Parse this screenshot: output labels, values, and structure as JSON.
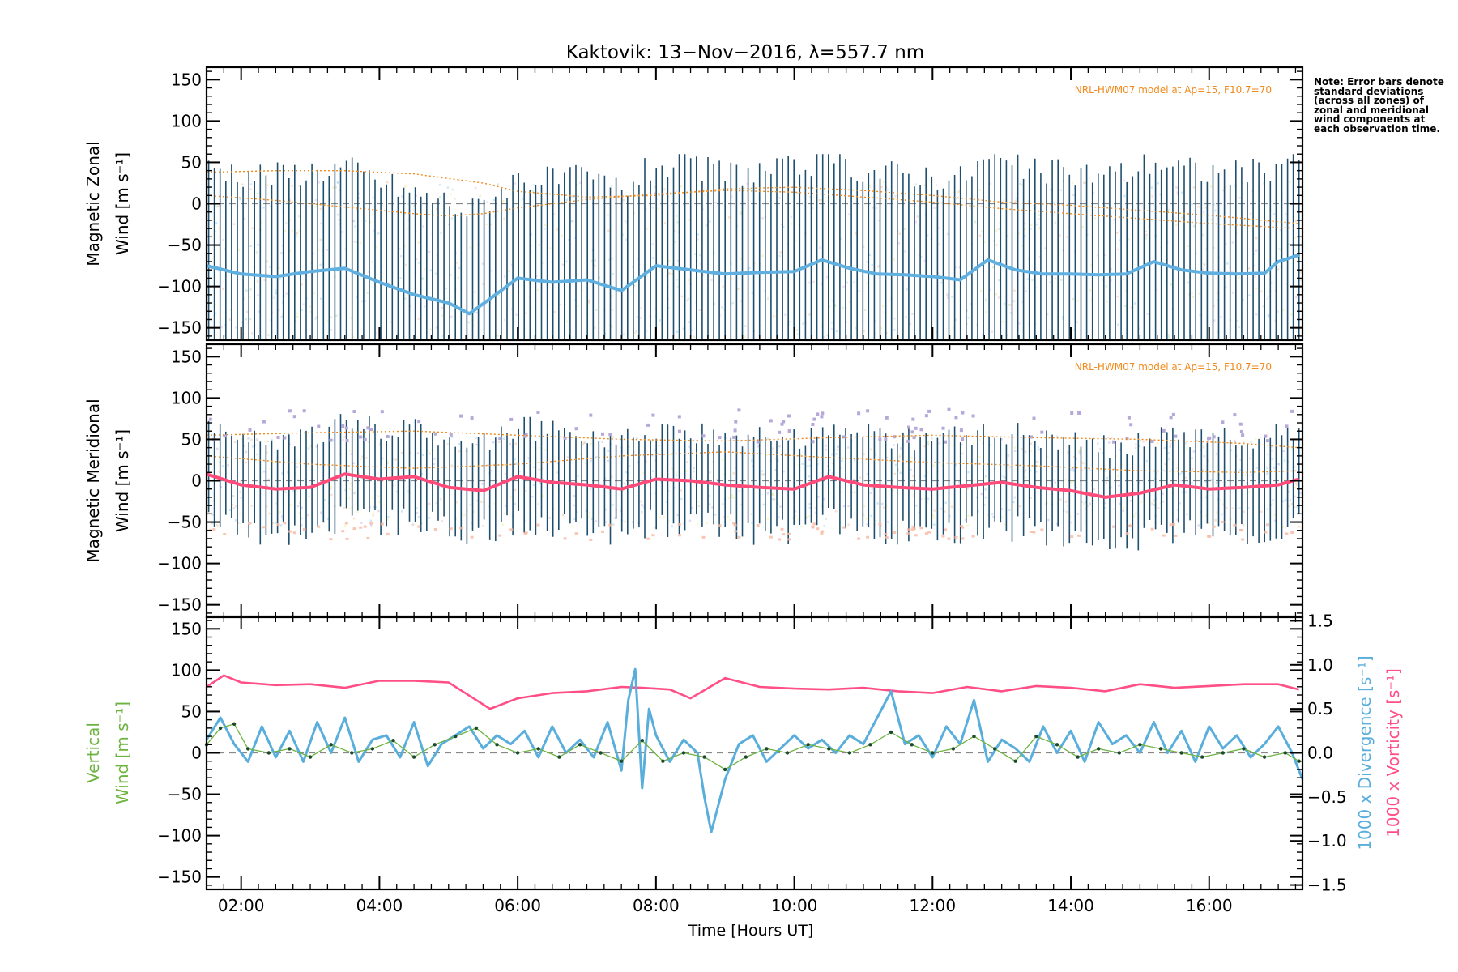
{
  "title": "Kaktovik: 13−Nov−2016, λ=557.7 nm",
  "note": "Note: Error bars denote standard deviations (across all zones) of zonal and meridional wind components at each observation time.",
  "colors": {
    "zonal": "#5fb0e0",
    "zonal_dark": "#1e3ed6",
    "meridional": "#ff4b7a",
    "divergence": "#5aaedc",
    "vorticity": "#ff4f86",
    "vertical": "#6db33f",
    "model": "#f08a1c",
    "errorbar": "#1f4f6e",
    "scatter_purple": "#b6a8d8",
    "scatter_yellow": "#f3f0a0",
    "scatter_salmon": "#f7b8a0"
  },
  "chart_data": [
    {
      "type": "line",
      "panel": "zonal",
      "ylabel_line1": "Magnetic Zonal",
      "ylabel_line2": "Wind [m s⁻¹]",
      "ylim": [
        -165,
        165
      ],
      "yticks": [
        150,
        100,
        50,
        0,
        -50,
        -100,
        -150
      ],
      "model_label": "NRL-HWM07 model at Ap=15, F10.7=70",
      "series": [
        {
          "role": "zonal-wind",
          "x": [
            1.5,
            2.0,
            2.5,
            3.0,
            3.5,
            4.0,
            4.5,
            5.0,
            5.3,
            5.6,
            6.0,
            6.5,
            7.0,
            7.5,
            8.0,
            8.5,
            9.0,
            9.5,
            10.0,
            10.4,
            10.8,
            11.2,
            11.6,
            12.0,
            12.4,
            12.8,
            13.2,
            13.6,
            14.0,
            14.4,
            14.8,
            15.2,
            15.6,
            16.0,
            16.4,
            16.8,
            17.0,
            17.3
          ],
          "y": [
            -75,
            -85,
            -88,
            -82,
            -78,
            -95,
            -110,
            -120,
            -133,
            -115,
            -90,
            -95,
            -92,
            -105,
            -75,
            -80,
            -85,
            -83,
            -82,
            -68,
            -78,
            -85,
            -86,
            -88,
            -92,
            -68,
            -80,
            -85,
            -85,
            -86,
            -85,
            -70,
            -80,
            -84,
            -85,
            -84,
            -70,
            -62
          ]
        },
        {
          "role": "model-zonal-upper",
          "x": [
            1.5,
            2.5,
            3.5,
            4.5,
            5.5,
            6.0,
            7.0,
            8.0,
            9.0,
            10.0,
            11.0,
            12.0,
            13.0,
            14.0,
            15.0,
            16.0,
            17.3
          ],
          "y": [
            38,
            40,
            40,
            36,
            25,
            15,
            8,
            10,
            18,
            20,
            16,
            10,
            2,
            -2,
            -8,
            -14,
            -24
          ]
        },
        {
          "role": "model-zonal-lower",
          "x": [
            1.5,
            2.5,
            3.5,
            4.5,
            5.0,
            5.5,
            6.0,
            7.0,
            8.0,
            9.0,
            10.0,
            11.0,
            12.0,
            13.0,
            14.0,
            15.0,
            16.0,
            17.3
          ],
          "y": [
            10,
            4,
            -4,
            -12,
            -15,
            -12,
            -5,
            5,
            12,
            16,
            14,
            8,
            2,
            -6,
            -12,
            -18,
            -24,
            -30
          ]
        }
      ]
    },
    {
      "type": "line",
      "panel": "meridional",
      "ylabel_line1": "Magnetic Meridional",
      "ylabel_line2": "Wind [m s⁻¹]",
      "ylim": [
        -165,
        165
      ],
      "yticks": [
        150,
        100,
        50,
        0,
        -50,
        -100,
        -150
      ],
      "model_label": "NRL-HWM07 model at Ap=15, F10.7=70",
      "series": [
        {
          "role": "meridional-wind",
          "x": [
            1.5,
            2.0,
            2.5,
            3.0,
            3.5,
            4.0,
            4.5,
            5.0,
            5.5,
            6.0,
            6.5,
            7.0,
            7.5,
            8.0,
            8.5,
            9.0,
            9.5,
            10.0,
            10.5,
            11.0,
            11.5,
            12.0,
            12.5,
            13.0,
            13.5,
            14.0,
            14.5,
            15.0,
            15.5,
            16.0,
            16.5,
            17.0,
            17.3
          ],
          "y": [
            8,
            -5,
            -10,
            -8,
            8,
            2,
            5,
            -8,
            -12,
            5,
            -2,
            -5,
            -10,
            2,
            0,
            -5,
            -8,
            -10,
            5,
            -5,
            -8,
            -10,
            -6,
            -2,
            -8,
            -12,
            -20,
            -15,
            -5,
            -10,
            -8,
            -5,
            2
          ]
        },
        {
          "role": "model-meridional-upper",
          "x": [
            1.5,
            3.0,
            4.5,
            6.0,
            7.5,
            9.0,
            10.5,
            12.0,
            13.5,
            15.0,
            16.5,
            17.3
          ],
          "y": [
            55,
            58,
            60,
            55,
            50,
            48,
            52,
            55,
            52,
            50,
            45,
            40
          ]
        },
        {
          "role": "model-meridional-lower",
          "x": [
            1.5,
            3.0,
            4.5,
            6.0,
            7.5,
            9.0,
            10.5,
            12.0,
            13.5,
            15.0,
            16.5,
            17.3
          ],
          "y": [
            30,
            20,
            15,
            20,
            30,
            35,
            28,
            22,
            18,
            12,
            10,
            12
          ]
        }
      ]
    },
    {
      "type": "line",
      "panel": "vertical",
      "ylabel_line1": "Vertical",
      "ylabel_line2": "Wind [m s⁻¹]",
      "ylim": [
        -165,
        165
      ],
      "yticks": [
        150,
        100,
        50,
        0,
        -50,
        -100,
        -150
      ],
      "y2lim": [
        -1.55,
        1.55
      ],
      "y2ticks": [
        "1.5",
        "1.0",
        "0.5",
        "0.0",
        "−0.5",
        "−1.0",
        "−1.5"
      ],
      "y2label_div": "1000 x Divergence [s⁻¹]",
      "y2label_vort": "1000 x Vorticity [s⁻¹]",
      "xlim": [
        1.5,
        17.35
      ],
      "xticks": [
        "02:00",
        "04:00",
        "06:00",
        "08:00",
        "10:00",
        "12:00",
        "14:00",
        "16:00"
      ],
      "xlabel": "Time [Hours UT]",
      "series": [
        {
          "role": "vorticity",
          "axis": "y2",
          "x": [
            1.5,
            1.75,
            2.0,
            2.5,
            3.0,
            3.5,
            4.0,
            4.5,
            5.0,
            5.3,
            5.6,
            6.0,
            6.5,
            7.0,
            7.5,
            7.8,
            8.2,
            8.5,
            9.0,
            9.5,
            10.0,
            10.5,
            11.0,
            11.5,
            12.0,
            12.5,
            13.0,
            13.5,
            14.0,
            14.5,
            15.0,
            15.5,
            16.0,
            16.5,
            17.0,
            17.3
          ],
          "y": [
            0.75,
            0.88,
            0.8,
            0.77,
            0.78,
            0.74,
            0.82,
            0.82,
            0.8,
            0.65,
            0.5,
            0.62,
            0.68,
            0.7,
            0.75,
            0.74,
            0.72,
            0.62,
            0.85,
            0.75,
            0.73,
            0.72,
            0.74,
            0.7,
            0.68,
            0.75,
            0.7,
            0.76,
            0.74,
            0.7,
            0.78,
            0.74,
            0.76,
            0.78,
            0.78,
            0.72
          ]
        },
        {
          "role": "divergence",
          "axis": "y2",
          "x": [
            1.5,
            1.7,
            1.9,
            2.1,
            2.3,
            2.5,
            2.7,
            2.9,
            3.1,
            3.3,
            3.5,
            3.7,
            3.9,
            4.1,
            4.3,
            4.5,
            4.7,
            4.9,
            5.1,
            5.3,
            5.5,
            5.7,
            5.9,
            6.1,
            6.3,
            6.5,
            6.7,
            6.9,
            7.1,
            7.3,
            7.5,
            7.6,
            7.7,
            7.8,
            7.9,
            8.0,
            8.2,
            8.4,
            8.6,
            8.7,
            8.8,
            9.0,
            9.2,
            9.4,
            9.6,
            9.8,
            10.0,
            10.2,
            10.4,
            10.6,
            10.8,
            11.0,
            11.2,
            11.4,
            11.6,
            11.8,
            12.0,
            12.2,
            12.4,
            12.6,
            12.8,
            13.0,
            13.2,
            13.4,
            13.6,
            13.8,
            14.0,
            14.2,
            14.4,
            14.6,
            14.8,
            15.0,
            15.2,
            15.4,
            15.6,
            15.8,
            16.0,
            16.2,
            16.4,
            16.6,
            16.8,
            17.0,
            17.2,
            17.35
          ],
          "y": [
            0.15,
            0.4,
            0.1,
            -0.1,
            0.3,
            -0.05,
            0.25,
            -0.1,
            0.35,
            0.0,
            0.4,
            -0.1,
            0.15,
            0.2,
            -0.05,
            0.35,
            -0.15,
            0.1,
            0.2,
            0.3,
            0.05,
            0.2,
            0.1,
            0.25,
            -0.05,
            0.3,
            0.0,
            0.15,
            -0.05,
            0.35,
            -0.2,
            0.6,
            0.95,
            -0.4,
            0.5,
            0.2,
            -0.1,
            0.15,
            0.0,
            -0.5,
            -0.9,
            -0.3,
            0.1,
            0.2,
            -0.1,
            0.05,
            0.2,
            0.05,
            0.15,
            0.0,
            0.2,
            0.1,
            0.4,
            0.7,
            0.1,
            0.2,
            -0.05,
            0.3,
            0.1,
            0.6,
            -0.1,
            0.15,
            0.05,
            -0.1,
            0.3,
            0.0,
            0.25,
            -0.1,
            0.35,
            0.1,
            0.2,
            0.0,
            0.35,
            0.0,
            0.25,
            -0.1,
            0.3,
            0.05,
            0.2,
            -0.05,
            0.1,
            0.3,
            0.0,
            -0.3
          ]
        },
        {
          "role": "vertical-wind",
          "axis": "y1",
          "x": [
            1.5,
            1.7,
            1.9,
            2.1,
            2.4,
            2.7,
            3.0,
            3.3,
            3.6,
            3.9,
            4.2,
            4.5,
            4.8,
            5.1,
            5.4,
            5.7,
            6.0,
            6.3,
            6.6,
            6.9,
            7.2,
            7.5,
            7.8,
            8.1,
            8.4,
            8.7,
            9.0,
            9.3,
            9.6,
            9.9,
            10.2,
            10.5,
            10.8,
            11.1,
            11.4,
            11.7,
            12.0,
            12.3,
            12.6,
            12.9,
            13.2,
            13.5,
            13.8,
            14.1,
            14.4,
            14.7,
            15.0,
            15.3,
            15.6,
            15.9,
            16.2,
            16.5,
            16.8,
            17.1,
            17.3
          ],
          "y": [
            10,
            30,
            35,
            5,
            0,
            5,
            -5,
            10,
            0,
            5,
            15,
            -5,
            10,
            20,
            30,
            10,
            0,
            5,
            -5,
            10,
            0,
            -10,
            15,
            -10,
            0,
            -5,
            -20,
            -5,
            5,
            0,
            10,
            5,
            0,
            10,
            25,
            10,
            0,
            5,
            20,
            5,
            -10,
            20,
            10,
            -5,
            5,
            0,
            10,
            5,
            0,
            -5,
            0,
            5,
            -5,
            0,
            -10
          ]
        }
      ]
    }
  ]
}
